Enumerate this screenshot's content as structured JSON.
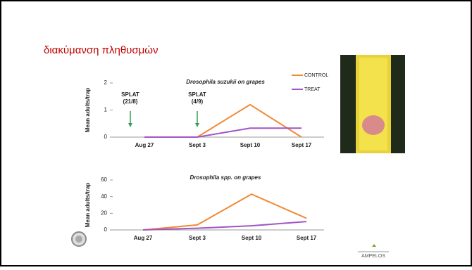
{
  "header": {
    "title": "διακύμανση πληθυσμών"
  },
  "footer": {
    "logo_text": "AMPELOS"
  },
  "chart_data": [
    {
      "type": "line",
      "title": "Drosophila suzukii on grapes",
      "y_label": "Mean adults/trap",
      "categories": [
        "Aug 27",
        "Sept 3",
        "Sept 10",
        "Sept 17"
      ],
      "series": [
        {
          "name": "CONTROL",
          "color": "#f08a35",
          "values": [
            null,
            0,
            1.2,
            0
          ]
        },
        {
          "name": "TREAT",
          "color": "#a055c8",
          "values": [
            0,
            0,
            0.33,
            0.33
          ]
        }
      ],
      "ylim": [
        0,
        2
      ],
      "yticks": [
        0,
        1,
        2
      ],
      "annotations": [
        {
          "lines": [
            "SPLAT",
            "(21/8)"
          ]
        },
        {
          "lines": [
            "SPLAT",
            "(4/9)"
          ]
        }
      ]
    },
    {
      "type": "line",
      "title": "Drosophila spp. on grapes",
      "y_label": "Mean adults/trap",
      "categories": [
        "Aug 27",
        "Sept 3",
        "Sept 10",
        "Sept 17"
      ],
      "series": [
        {
          "color": "#f08a35",
          "values": [
            0,
            6,
            43,
            14
          ]
        },
        {
          "color": "#a055c8",
          "values": [
            0,
            2,
            5,
            10
          ]
        }
      ],
      "ylim": [
        0,
        60
      ],
      "yticks": [
        0,
        20,
        40,
        60
      ]
    }
  ]
}
